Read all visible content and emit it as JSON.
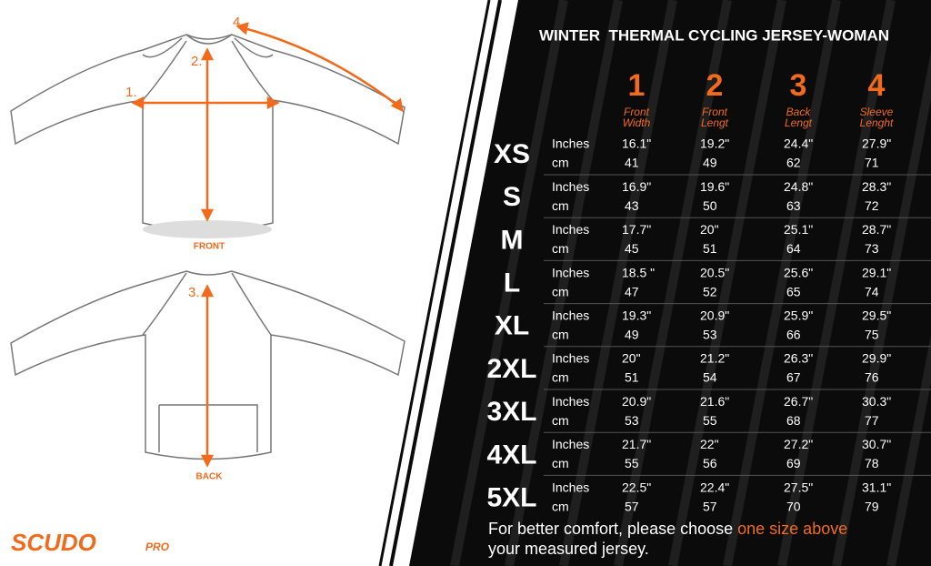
{
  "title": "WINTER  THERMAL CYCLING JERSEY-WOMAN",
  "diagram": {
    "front_label": "FRONT",
    "back_label": "BACK",
    "markers": [
      "1.",
      "2.",
      "3.",
      "4."
    ]
  },
  "brand": {
    "name": "SCUDO",
    "suffix": "PRO"
  },
  "columns": [
    {
      "number": "1",
      "label": [
        "Front",
        "Width"
      ]
    },
    {
      "number": "2",
      "label": [
        "Front",
        "Lengt"
      ]
    },
    {
      "number": "3",
      "label": [
        "Back",
        "Lengt"
      ]
    },
    {
      "number": "4",
      "label": [
        "Sleeve",
        "Lenght"
      ]
    }
  ],
  "units": [
    "Inches",
    "cm"
  ],
  "rows": [
    {
      "size": "XS",
      "inches": [
        "16.1\"",
        "19.2\"",
        "24.4\"",
        "27.9\""
      ],
      "cm": [
        "41",
        "49",
        "62",
        "71"
      ]
    },
    {
      "size": "S",
      "inches": [
        "16.9\"",
        "19.6\"",
        "24.8\"",
        "28.3\""
      ],
      "cm": [
        "43",
        "50",
        "63",
        "72"
      ]
    },
    {
      "size": "M",
      "inches": [
        "17.7\"",
        "20\"",
        "25.1\"",
        "28.7\""
      ],
      "cm": [
        "45",
        "51",
        "64",
        "73"
      ]
    },
    {
      "size": "L",
      "inches": [
        "18.5 \"",
        "20.5\"",
        "25.6\"",
        "29.1\""
      ],
      "cm": [
        "47",
        "52",
        "65",
        "74"
      ]
    },
    {
      "size": "XL",
      "inches": [
        "19.3\"",
        "20.9\"",
        "25.9\"",
        "29.5\""
      ],
      "cm": [
        "49",
        "53",
        "66",
        "75"
      ]
    },
    {
      "size": "2XL",
      "inches": [
        "20\"",
        "21.2\"",
        "26.3\"",
        "29.9\""
      ],
      "cm": [
        "51",
        "54",
        "67",
        "76"
      ]
    },
    {
      "size": "3XL",
      "inches": [
        "20.9\"",
        "21.6\"",
        "26.7\"",
        "30.3\""
      ],
      "cm": [
        "53",
        "55",
        "68",
        "77"
      ]
    },
    {
      "size": "4XL",
      "inches": [
        "21.7\"",
        "22\"",
        "27.2\"",
        "30.7\""
      ],
      "cm": [
        "55",
        "56",
        "69",
        "78"
      ]
    },
    {
      "size": "5XL",
      "inches": [
        "22.5\"",
        "22.4\"",
        "27.5\"",
        "31.1\""
      ],
      "cm": [
        "57",
        "57",
        "70",
        "79"
      ]
    }
  ],
  "footer": {
    "before": "For better comfort, please choose ",
    "highlight": "one size above",
    "after": "your measured jersey."
  }
}
